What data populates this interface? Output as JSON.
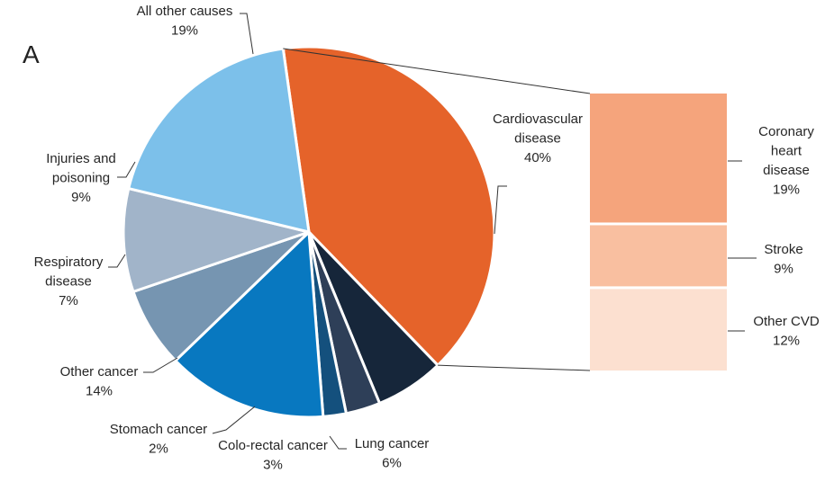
{
  "panel_label": "A",
  "chart_data": {
    "type": "pie",
    "title": "",
    "slices": [
      {
        "lines": [
          "Cardiovascular",
          "disease",
          "40%"
        ],
        "value": 40,
        "color": "#E5632A"
      },
      {
        "lines": [
          "Lung cancer",
          "6%"
        ],
        "value": 6,
        "color": "#16263A"
      },
      {
        "lines": [
          "Colo-rectal cancer",
          "3%"
        ],
        "value": 3,
        "color": "#2E3F58"
      },
      {
        "lines": [
          "Stomach cancer",
          "2%"
        ],
        "value": 2,
        "color": "#14507D"
      },
      {
        "lines": [
          "Other cancer",
          "14%"
        ],
        "value": 14,
        "color": "#0878C0"
      },
      {
        "lines": [
          "Respiratory",
          "disease",
          "7%"
        ],
        "value": 7,
        "color": "#7695B1"
      },
      {
        "lines": [
          "Injuries and",
          "poisoning",
          "9%"
        ],
        "value": 9,
        "color": "#A1B4C9"
      },
      {
        "lines": [
          "All other causes",
          "19%"
        ],
        "value": 19,
        "color": "#7CC0EA"
      }
    ],
    "breakdown": {
      "of": "Cardiovascular disease",
      "segments": [
        {
          "lines": [
            "Coronary",
            "heart",
            "disease",
            "19%"
          ],
          "value": 19,
          "color": "#F5A47C"
        },
        {
          "lines": [
            "Stroke",
            "9%"
          ],
          "value": 9,
          "color": "#F9BFA0"
        },
        {
          "lines": [
            "Other CVD",
            "12%"
          ],
          "value": 12,
          "color": "#FCE0D0"
        }
      ]
    }
  }
}
